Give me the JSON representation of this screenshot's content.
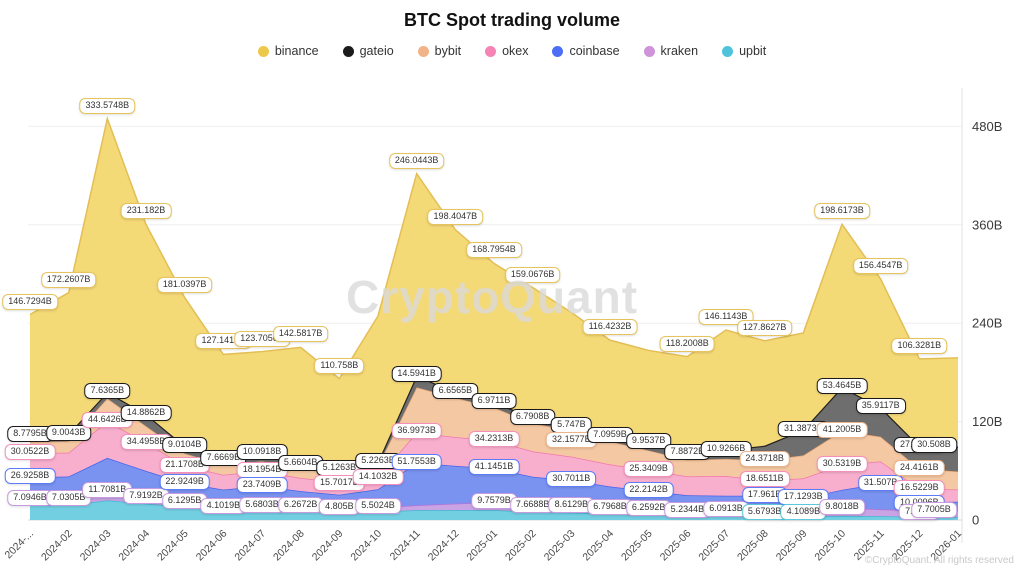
{
  "title": "BTC Spot trading volume",
  "watermark": "CryptoQuant",
  "copyright": "©CryptoQuant. All rights reserved",
  "legend": [
    {
      "name": "binance",
      "color": "#ECC94B"
    },
    {
      "name": "gateio",
      "color": "#1b1b1b"
    },
    {
      "name": "bybit",
      "color": "#F0B488"
    },
    {
      "name": "okex",
      "color": "#F583B4"
    },
    {
      "name": "coinbase",
      "color": "#4C6EF5"
    },
    {
      "name": "kraken",
      "color": "#CE93D8"
    },
    {
      "name": "upbit",
      "color": "#4FC3DC"
    }
  ],
  "y_axis": {
    "ticks": [
      {
        "label": "0",
        "value": 0
      },
      {
        "label": "120B",
        "value": 120
      },
      {
        "label": "240B",
        "value": 240
      },
      {
        "label": "360B",
        "value": 360
      },
      {
        "label": "480B",
        "value": 480
      }
    ]
  },
  "chart_data": {
    "type": "area",
    "stacked": true,
    "grid": true,
    "legend_position": "top",
    "y_range": [
      0,
      520
    ],
    "categories": [
      "2024-...",
      "2024-02",
      "2024-03",
      "2024-04",
      "2024-05",
      "2024-06",
      "2024-07",
      "2024-08",
      "2024-09",
      "2024-10",
      "2024-11",
      "2024-12",
      "2025-01",
      "2025-02",
      "2025-03",
      "2025-04",
      "2025-05",
      "2025-06",
      "2025-07",
      "2025-08",
      "2025-09",
      "2025-10",
      "2025-11",
      "2025-12",
      "2026-01"
    ],
    "stack_order": [
      "upbit",
      "kraken",
      "coinbase",
      "okex",
      "bybit",
      "gateio",
      "binance"
    ],
    "series": [
      {
        "name": "binance",
        "fill": "#F4D977",
        "line": "#E3BE55",
        "border": "#E6C35C",
        "values": [
          146.7294,
          172.2607,
          333.5748,
          231.182,
          181.0397,
          127.1417,
          123.7056,
          142.5817,
          110.758,
          178,
          246.0443,
          198.4047,
          168.7954,
          159.0676,
          138,
          116.4232,
          112,
          118.2008,
          146.1143,
          127.8627,
          118,
          198.6173,
          156.4547,
          106.3281,
          108
        ],
        "labels": [
          "146.7294B",
          "172.2607B",
          "333.5748B",
          "231.182B",
          "181.0397B",
          "127.1417B",
          "123.7056B",
          "142.5817B",
          "110.758B",
          null,
          "246.0443B",
          "198.4047B",
          "168.7954B",
          "159.0676B",
          null,
          "116.4232B",
          null,
          "118.2008B",
          "146.1143B",
          "127.8627B",
          null,
          "198.6173B",
          "156.4547B",
          "106.3281B",
          null
        ]
      },
      {
        "name": "gateio",
        "fill": "#6E6E6E",
        "line": "#222222",
        "border": "#1a1a1a",
        "values": [
          8.7795,
          9.0043,
          7.6365,
          14.8862,
          9.0104,
          7.6669,
          10.0918,
          5.6604,
          5.1263,
          5.2263,
          14.5941,
          6.6565,
          6.9711,
          6.7908,
          5.747,
          7.0959,
          9.9537,
          7.8872,
          10.9266,
          18,
          31.3873,
          53.4645,
          35.9117,
          27.7674,
          30.508
        ],
        "labels": [
          "8.7795B",
          "9.0043B",
          "7.6365B",
          "14.8862B",
          "9.0104B",
          "7.6669B",
          "10.0918B",
          "5.6604B",
          "5.1263B",
          "5.2263B",
          "14.5941B",
          "6.6565B",
          "6.9711B",
          "6.7908B",
          "5.747B",
          "7.0959B",
          "9.9537B",
          "7.8872B",
          "10.9266B",
          null,
          "31.3873B",
          "53.4645B",
          "35.9117B",
          "27.7674B",
          "30.508B"
        ]
      },
      {
        "name": "bybit",
        "fill": "#F4C8A3",
        "line": "#E8A877",
        "border": "#EAB38A",
        "values": [
          13,
          14,
          28,
          20,
          15,
          12,
          12,
          11,
          10,
          14,
          55,
          48,
          40,
          34,
          32.1577,
          28,
          24,
          20,
          21,
          24.3718,
          28,
          41.2005,
          30,
          24.4161,
          22
        ],
        "labels": [
          null,
          null,
          null,
          null,
          null,
          null,
          null,
          null,
          null,
          null,
          null,
          null,
          null,
          null,
          "32.1577B",
          null,
          null,
          null,
          null,
          "24.3718B",
          null,
          "41.2005B",
          null,
          "24.4161B",
          null
        ]
      },
      {
        "name": "okex",
        "fill": "#F8AFCE",
        "line": "#F277AC",
        "border": "#F48FBB",
        "values": [
          30.0522,
          29,
          44.6426,
          34.4958,
          21.1708,
          18,
          18.1954,
          16,
          15.7017,
          14.1032,
          36.9973,
          35,
          34.2313,
          31,
          29,
          27,
          25.3409,
          23,
          24,
          18.6511,
          24,
          30.5319,
          27,
          16.5229,
          15
        ],
        "labels": [
          "30.0522B",
          null,
          "44.6426B",
          "34.4958B",
          "21.1708B",
          null,
          "18.1954B",
          null,
          "15.7017B",
          "14.1032B",
          "36.9973B",
          null,
          "34.2313B",
          null,
          null,
          null,
          "25.3409B",
          null,
          null,
          "18.6511B",
          null,
          "30.5319B",
          null,
          "16.5229B",
          null
        ]
      },
      {
        "name": "coinbase",
        "fill": "#7A93F0",
        "line": "#4663E8",
        "border": "#5C7CFA",
        "values": [
          26.9258,
          28,
          40,
          32,
          22.9249,
          21,
          23.7409,
          18,
          16,
          22,
          51.7553,
          46,
          41.1451,
          35,
          30.7011,
          26,
          22.2142,
          19,
          18,
          17.961,
          17.1293,
          22,
          31.507,
          10.0096,
          11
        ],
        "labels": [
          "26.9258B",
          null,
          null,
          null,
          "22.9249B",
          null,
          "23.7409B",
          null,
          null,
          null,
          "51.7553B",
          null,
          "41.1451B",
          null,
          "30.7011B",
          null,
          "22.2142B",
          null,
          null,
          "17.961B",
          "17.1293B",
          null,
          "31.507B",
          "10.0096B",
          null
        ]
      },
      {
        "name": "kraken",
        "fill": "#C9A3E3",
        "line": "#B273D6",
        "border": "#C79BE0",
        "values": [
          7.0946,
          7.0305,
          11.7081,
          7.9192,
          6.1295,
          4.1019,
          5.6803,
          6.2672,
          4.805,
          5.5024,
          6,
          8,
          9.7579,
          7.6688,
          8.6129,
          6.7968,
          6.2592,
          5.2344,
          6.0913,
          6,
          5.5,
          9.8018,
          8.5,
          7.453,
          7.7005
        ],
        "labels": [
          "7.0946B",
          "7.0305B",
          "11.7081B",
          "7.9192B",
          "6.1295B",
          "4.1019B",
          "5.6803B",
          "6.2672B",
          "4.805B",
          "5.5024B",
          null,
          null,
          "9.7579B",
          "7.6688B",
          "8.6129B",
          "6.7968B",
          "6.2592B",
          "5.2344B",
          "6.0913B",
          null,
          null,
          "9.8018B",
          null,
          "7.453B",
          "7.7005B"
        ]
      },
      {
        "name": "upbit",
        "fill": "#72CFE2",
        "line": "#3FB9D3",
        "border": "#5BC8DC",
        "values": [
          18,
          18,
          24,
          20,
          16,
          12,
          12,
          11,
          10,
          10,
          12,
          12,
          12,
          10,
          9,
          8,
          7,
          6,
          5.5,
          5.6793,
          4.1089,
          5,
          4.5,
          4,
          3.5
        ],
        "labels": [
          null,
          null,
          null,
          null,
          null,
          null,
          null,
          null,
          null,
          null,
          null,
          null,
          null,
          null,
          null,
          null,
          null,
          null,
          null,
          "5.6793B",
          "4.1089B",
          null,
          null,
          null,
          null
        ]
      }
    ]
  }
}
